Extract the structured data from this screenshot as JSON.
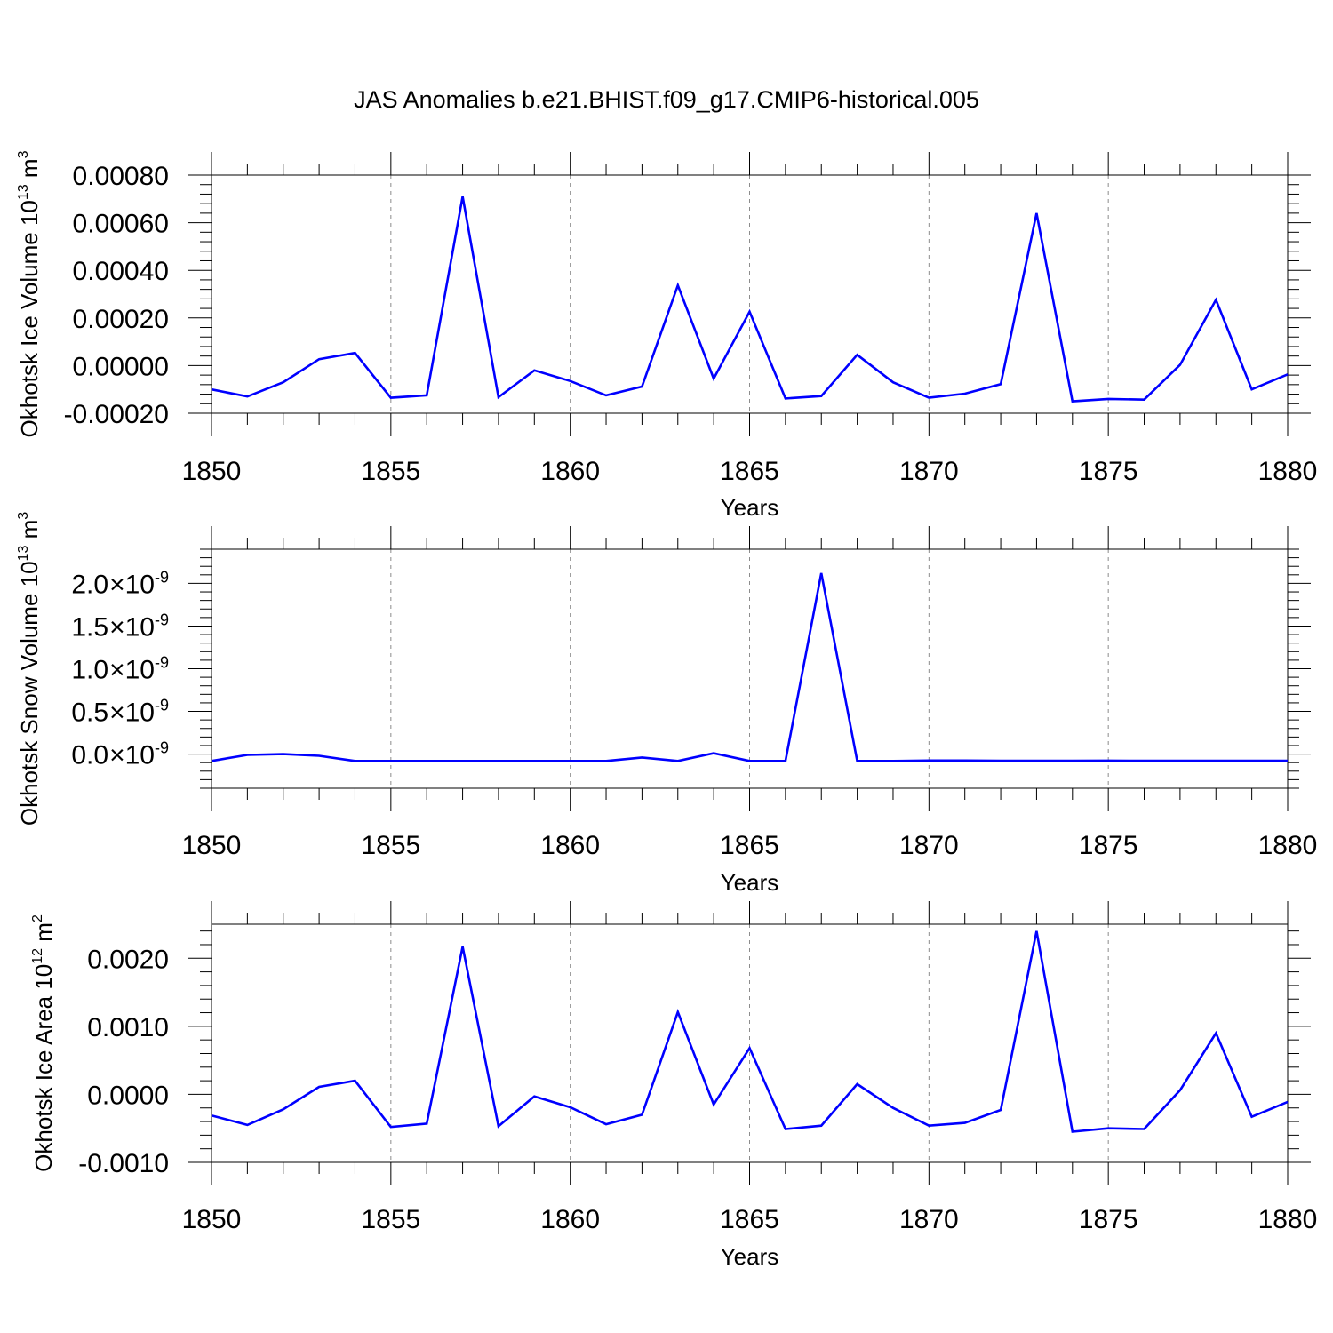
{
  "title": "JAS Anomalies b.e21.BHIST.f09_g17.CMIP6-historical.005",
  "colors": {
    "line": "#0000ff",
    "axis": "#000000",
    "grid": "#8c8c8c"
  },
  "chart_data": [
    {
      "type": "line",
      "xlabel": "Years",
      "ylabel_main": "Okhotsk Ice Volume 10",
      "ylabel_exp": "13",
      "ylabel_unit": " m",
      "ylabel_unit_exp": "3",
      "xlim": [
        1850,
        1880
      ],
      "ylim": [
        -0.0002,
        0.0008
      ],
      "x_ticks": [
        1850,
        1855,
        1860,
        1865,
        1870,
        1875,
        1880
      ],
      "x_tick_labels": [
        "1850",
        "1855",
        "1860",
        "1865",
        "1870",
        "1875",
        "1880"
      ],
      "y_ticks": [
        -0.0002,
        0.0,
        0.0002,
        0.0004,
        0.0006,
        0.0008
      ],
      "y_tick_labels": [
        {
          "text": "-0.00020"
        },
        {
          "text": "0.00000"
        },
        {
          "text": "0.00020"
        },
        {
          "text": "0.00040"
        },
        {
          "text": "0.00060"
        },
        {
          "text": "0.00080"
        }
      ],
      "grid_x": [
        1855,
        1860,
        1865,
        1870,
        1875
      ],
      "x": [
        1850,
        1851,
        1852,
        1853,
        1854,
        1855,
        1856,
        1857,
        1858,
        1859,
        1860,
        1861,
        1862,
        1863,
        1864,
        1865,
        1866,
        1867,
        1868,
        1869,
        1870,
        1871,
        1872,
        1873,
        1874,
        1875,
        1876,
        1877,
        1878,
        1879,
        1880
      ],
      "values": [
        -0.0001,
        -0.00013,
        -7e-05,
        2.7e-05,
        5.3e-05,
        -0.000135,
        -0.000125,
        0.00071,
        -0.000133,
        -2e-05,
        -6.5e-05,
        -0.000125,
        -8.8e-05,
        0.000337,
        -5.5e-05,
        0.000226,
        -0.000138,
        -0.000128,
        4.5e-05,
        -7e-05,
        -0.000135,
        -0.000118,
        -7.8e-05,
        0.00064,
        -0.00015,
        -0.00014,
        -0.000143,
        3e-06,
        0.000276,
        -0.0001,
        -3.7e-05
      ]
    },
    {
      "type": "line",
      "xlabel": "Years",
      "ylabel_main": "Okhotsk Snow Volume 10",
      "ylabel_exp": "13",
      "ylabel_unit": " m",
      "ylabel_unit_exp": "3",
      "xlim": [
        1850,
        1880
      ],
      "ylim": [
        -4e-10,
        2.4e-09
      ],
      "x_ticks": [
        1850,
        1855,
        1860,
        1865,
        1870,
        1875,
        1880
      ],
      "x_tick_labels": [
        "1850",
        "1855",
        "1860",
        "1865",
        "1870",
        "1875",
        "1880"
      ],
      "y_ticks": [
        0.0,
        5e-10,
        1e-09,
        1.5e-09,
        2e-09
      ],
      "y_tick_labels": [
        {
          "mant": "0.0",
          "times": "×",
          "base": "10",
          "exp": "-9"
        },
        {
          "mant": "0.5",
          "times": "×",
          "base": "10",
          "exp": "-9"
        },
        {
          "mant": "1.0",
          "times": "×",
          "base": "10",
          "exp": "-9"
        },
        {
          "mant": "1.5",
          "times": "×",
          "base": "10",
          "exp": "-9"
        },
        {
          "mant": "2.0",
          "times": "×",
          "base": "10",
          "exp": "-9"
        }
      ],
      "grid_x": [
        1855,
        1860,
        1865,
        1870,
        1875
      ],
      "x": [
        1850,
        1851,
        1852,
        1853,
        1854,
        1855,
        1856,
        1857,
        1858,
        1859,
        1860,
        1861,
        1862,
        1863,
        1864,
        1865,
        1866,
        1867,
        1868,
        1869,
        1870,
        1871,
        1872,
        1873,
        1874,
        1875,
        1876,
        1877,
        1878,
        1879,
        1880
      ],
      "values": [
        -8e-11,
        -1e-11,
        0,
        -2e-11,
        -8e-11,
        -8e-11,
        -8e-11,
        -8e-11,
        -8e-11,
        -8e-11,
        -8e-11,
        -8e-11,
        -4e-11,
        -8e-11,
        1e-11,
        -8e-11,
        -8e-11,
        2.12e-09,
        -8e-11,
        -8e-11,
        -7.5e-11,
        -7.5e-11,
        -7.8e-11,
        -7.8e-11,
        -7.8e-11,
        -7.6e-11,
        -7.8e-11,
        -7.8e-11,
        -7.8e-11,
        -7.8e-11,
        -7.8e-11
      ]
    },
    {
      "type": "line",
      "xlabel": "Years",
      "ylabel_main": "Okhotsk Ice Area 10",
      "ylabel_exp": "12",
      "ylabel_unit": " m",
      "ylabel_unit_exp": "2",
      "xlim": [
        1850,
        1880
      ],
      "ylim": [
        -0.001,
        0.0025
      ],
      "x_ticks": [
        1850,
        1855,
        1860,
        1865,
        1870,
        1875,
        1880
      ],
      "x_tick_labels": [
        "1850",
        "1855",
        "1860",
        "1865",
        "1870",
        "1875",
        "1880"
      ],
      "y_ticks": [
        -0.001,
        0.0,
        0.001,
        0.002
      ],
      "y_tick_labels": [
        {
          "text": "-0.0010"
        },
        {
          "text": "0.0000"
        },
        {
          "text": "0.0010"
        },
        {
          "text": "0.0020"
        }
      ],
      "grid_x": [
        1855,
        1860,
        1865,
        1870,
        1875
      ],
      "x": [
        1850,
        1851,
        1852,
        1853,
        1854,
        1855,
        1856,
        1857,
        1858,
        1859,
        1860,
        1861,
        1862,
        1863,
        1864,
        1865,
        1866,
        1867,
        1868,
        1869,
        1870,
        1871,
        1872,
        1873,
        1874,
        1875,
        1876,
        1877,
        1878,
        1879,
        1880
      ],
      "values": [
        -0.00031,
        -0.00045,
        -0.00022,
        0.00011,
        0.0002,
        -0.00048,
        -0.00043,
        0.00217,
        -0.00047,
        -3e-05,
        -0.00019,
        -0.00044,
        -0.0003,
        0.00121,
        -0.00015,
        0.00068,
        -0.00051,
        -0.00046,
        0.00015,
        -0.0002,
        -0.00046,
        -0.00042,
        -0.00023,
        0.0024,
        -0.00055,
        -0.0005,
        -0.00051,
        6e-05,
        0.0009,
        -0.00033,
        -0.00011
      ]
    }
  ]
}
